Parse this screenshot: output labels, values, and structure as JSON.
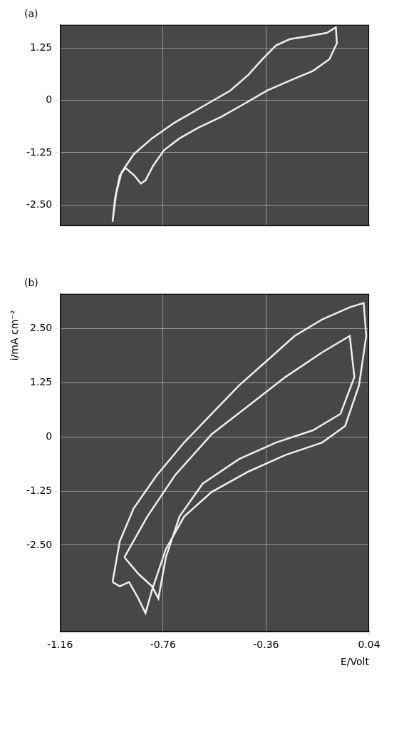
{
  "chart_data": [
    {
      "type": "line",
      "panel": "(a)",
      "ylabel": "i/mA cm⁻²",
      "grid": true,
      "tick_labels": "y",
      "xlim": [
        -1.16,
        0.04
      ],
      "xticks": [
        -1.16,
        -0.76,
        -0.36,
        0.04
      ],
      "ylim": [
        -3.0,
        1.8
      ],
      "yticks": [
        1.25,
        0,
        -1.25,
        {
          "value": -2.5,
          "label": "-2.50"
        }
      ],
      "series": [
        {
          "color": "#eeeeee",
          "x": [
            -0.956,
            -0.942,
            -0.921,
            -0.874,
            -0.803,
            -0.714,
            -0.606,
            -0.499,
            -0.428,
            -0.374,
            -0.321,
            -0.267,
            -0.196,
            -0.124,
            -0.089,
            -0.085,
            -0.114,
            -0.178,
            -0.267,
            -0.356,
            -0.446,
            -0.535,
            -0.624,
            -0.696,
            -0.756,
            -0.799,
            -0.828,
            -0.846,
            -0.871,
            -0.906,
            -0.928,
            -0.946,
            -0.956
          ],
          "values": [
            -2.9,
            -2.23,
            -1.72,
            -1.29,
            -0.91,
            -0.53,
            -0.15,
            0.23,
            0.61,
            0.98,
            1.31,
            1.46,
            1.53,
            1.61,
            1.74,
            1.36,
            0.98,
            0.7,
            0.47,
            0.23,
            -0.09,
            -0.4,
            -0.66,
            -0.91,
            -1.19,
            -1.57,
            -1.91,
            -1.99,
            -1.8,
            -1.61,
            -1.8,
            -2.33,
            -2.9
          ]
        }
      ]
    },
    {
      "type": "line",
      "panel": "(b)",
      "xlabel": "E/Volt",
      "grid": true,
      "xlim": [
        -1.16,
        0.04
      ],
      "xticks": [
        -1.16,
        -0.76,
        -0.36,
        0.04
      ],
      "ylim": [
        -4.5,
        3.3
      ],
      "yticks": [
        {
          "value": 2.5,
          "label": "2.50"
        },
        1.25,
        0,
        -1.25,
        {
          "value": -2.5,
          "label": "-2.50"
        }
      ],
      "series": [
        {
          "color": "#eeeeee",
          "x": [
            -0.956,
            -0.928,
            -0.874,
            -0.785,
            -0.678,
            -0.571,
            -0.464,
            -0.356,
            -0.249,
            -0.142,
            -0.035,
            0.019,
            0.029,
            0.001,
            -0.053,
            -0.142,
            -0.285,
            -0.428,
            -0.571,
            -0.678,
            -0.749,
            -0.803,
            -0.828,
            -0.856,
            -0.892,
            -0.928,
            -0.956
          ],
          "values": [
            -3.35,
            -2.41,
            -1.65,
            -0.89,
            -0.13,
            0.53,
            1.19,
            1.76,
            2.33,
            2.71,
            2.99,
            3.09,
            2.33,
            1.19,
            0.25,
            -0.13,
            -0.42,
            -0.8,
            -1.27,
            -1.84,
            -2.59,
            -3.54,
            -4.07,
            -3.73,
            -3.35,
            -3.45,
            -3.35
          ]
        },
        {
          "color": "#eeeeee",
          "x": [
            -0.91,
            -0.821,
            -0.714,
            -0.571,
            -0.428,
            -0.285,
            -0.142,
            -0.035,
            -0.017,
            -0.071,
            -0.178,
            -0.321,
            -0.464,
            -0.606,
            -0.696,
            -0.749,
            -0.778,
            -0.803,
            -0.856,
            -0.91
          ],
          "values": [
            -2.78,
            -1.84,
            -0.89,
            0.06,
            0.72,
            1.38,
            1.95,
            2.33,
            1.38,
            0.53,
            0.15,
            -0.13,
            -0.51,
            -1.08,
            -1.84,
            -2.78,
            -3.73,
            -3.45,
            -3.16,
            -2.78
          ]
        }
      ]
    }
  ]
}
